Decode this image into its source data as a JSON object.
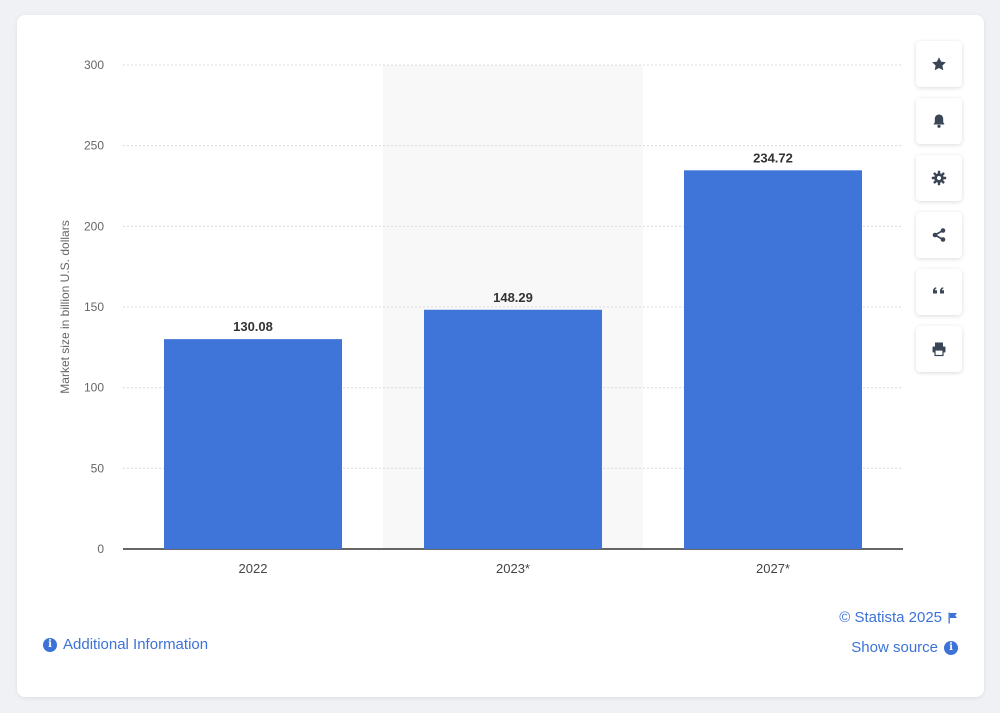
{
  "chart_data": {
    "type": "bar",
    "categories": [
      "2022",
      "2023*",
      "2027*"
    ],
    "values": [
      130.08,
      148.29,
      234.72
    ],
    "data_labels": [
      "130.08",
      "148.29",
      "234.72"
    ],
    "title": "",
    "xlabel": "",
    "ylabel": "Market size in billion U.S. dollars",
    "ylim": [
      0,
      300
    ],
    "yticks": [
      0,
      50,
      100,
      150,
      200,
      250,
      300
    ],
    "grid": true,
    "highlighted_category": "2023*",
    "bar_color": "#3f74d8",
    "highlight_color": "#f8f8f8",
    "grid_color": "#dcdcdc",
    "axis_color": "#333333"
  },
  "toolbar": {
    "buttons": [
      {
        "name": "favorite-button",
        "icon": "star-icon"
      },
      {
        "name": "notification-button",
        "icon": "bell-icon"
      },
      {
        "name": "settings-button",
        "icon": "gear-icon"
      },
      {
        "name": "share-button",
        "icon": "share-icon"
      },
      {
        "name": "cite-button",
        "icon": "quote-icon"
      },
      {
        "name": "print-button",
        "icon": "printer-icon"
      }
    ]
  },
  "footer": {
    "additional_info": "Additional Information",
    "copyright": "© Statista 2025",
    "show_source": "Show source",
    "link_color": "#3d72d8"
  }
}
